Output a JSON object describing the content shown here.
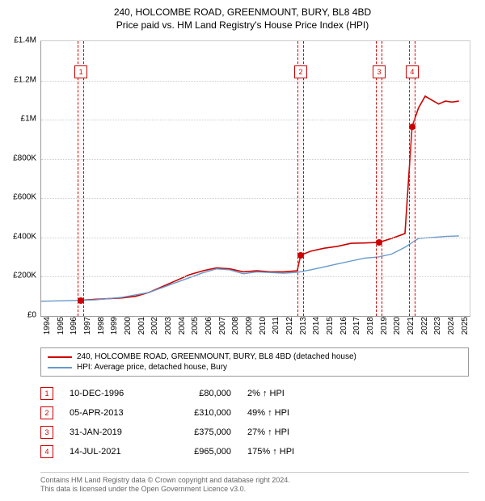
{
  "title_line1": "240, HOLCOMBE ROAD, GREENMOUNT, BURY, BL8 4BD",
  "title_line2": "Price paid vs. HM Land Registry's House Price Index (HPI)",
  "chart": {
    "type": "line",
    "background_color": "#ffffff",
    "grid_color": "#cccccc",
    "axis_color": "#999999",
    "x": {
      "min": 1994,
      "max": 2025.8,
      "ticks": [
        1994,
        1995,
        1996,
        1997,
        1998,
        1999,
        2000,
        2001,
        2002,
        2003,
        2004,
        2005,
        2006,
        2007,
        2008,
        2009,
        2010,
        2011,
        2012,
        2013,
        2014,
        2015,
        2016,
        2017,
        2018,
        2019,
        2020,
        2021,
        2022,
        2023,
        2024,
        2025
      ]
    },
    "y": {
      "min": 0,
      "max": 1400000,
      "ticks": [
        0,
        200000,
        400000,
        600000,
        800000,
        1000000,
        1200000,
        1400000
      ],
      "tick_labels": [
        "£0",
        "£200K",
        "£400K",
        "£600K",
        "£800K",
        "£1M",
        "£1.2M",
        "£1.4M"
      ]
    },
    "series": [
      {
        "name": "price_paid",
        "color": "#cc0000",
        "width": 1.6,
        "points": [
          [
            1996.95,
            80000
          ],
          [
            1998,
            85000
          ],
          [
            1999,
            88000
          ],
          [
            2000,
            92000
          ],
          [
            2001,
            100000
          ],
          [
            2002,
            120000
          ],
          [
            2003,
            150000
          ],
          [
            2004,
            180000
          ],
          [
            2005,
            210000
          ],
          [
            2006,
            230000
          ],
          [
            2007,
            245000
          ],
          [
            2008,
            240000
          ],
          [
            2009,
            225000
          ],
          [
            2010,
            230000
          ],
          [
            2011,
            225000
          ],
          [
            2012,
            225000
          ],
          [
            2013,
            230000
          ],
          [
            2013.26,
            310000
          ],
          [
            2014,
            330000
          ],
          [
            2015,
            345000
          ],
          [
            2016,
            355000
          ],
          [
            2017,
            370000
          ],
          [
            2018,
            372000
          ],
          [
            2019.08,
            375000
          ],
          [
            2020,
            395000
          ],
          [
            2021,
            420000
          ],
          [
            2021.53,
            965000
          ],
          [
            2022,
            1060000
          ],
          [
            2022.5,
            1120000
          ],
          [
            2023,
            1100000
          ],
          [
            2023.5,
            1080000
          ],
          [
            2024,
            1095000
          ],
          [
            2024.5,
            1090000
          ],
          [
            2025,
            1095000
          ]
        ]
      },
      {
        "name": "hpi",
        "color": "#6699cc",
        "width": 1.4,
        "points": [
          [
            1994,
            75000
          ],
          [
            1996,
            78000
          ],
          [
            1998,
            82000
          ],
          [
            2000,
            95000
          ],
          [
            2002,
            120000
          ],
          [
            2004,
            170000
          ],
          [
            2006,
            220000
          ],
          [
            2007,
            240000
          ],
          [
            2008,
            235000
          ],
          [
            2009,
            215000
          ],
          [
            2010,
            225000
          ],
          [
            2012,
            218000
          ],
          [
            2013,
            222000
          ],
          [
            2014,
            235000
          ],
          [
            2015,
            250000
          ],
          [
            2016,
            265000
          ],
          [
            2017,
            280000
          ],
          [
            2018,
            295000
          ],
          [
            2019,
            300000
          ],
          [
            2020,
            315000
          ],
          [
            2021,
            350000
          ],
          [
            2022,
            395000
          ],
          [
            2023,
            400000
          ],
          [
            2024,
            405000
          ],
          [
            2025,
            408000
          ]
        ]
      }
    ],
    "markers": [
      {
        "x": 1996.95,
        "y": 80000
      },
      {
        "x": 2013.26,
        "y": 310000
      },
      {
        "x": 2019.08,
        "y": 375000
      },
      {
        "x": 2021.53,
        "y": 965000
      }
    ],
    "bands": [
      {
        "num": "1",
        "x": 1996.95
      },
      {
        "num": "2",
        "x": 2013.26
      },
      {
        "num": "3",
        "x": 2019.08
      },
      {
        "num": "4",
        "x": 2021.53
      }
    ],
    "band_color": "#cc0000",
    "marker_color": "#cc0000"
  },
  "legend": {
    "items": [
      {
        "color": "#cc0000",
        "label": "240, HOLCOMBE ROAD, GREENMOUNT, BURY, BL8 4BD (detached house)"
      },
      {
        "color": "#6699cc",
        "label": "HPI: Average price, detached house, Bury"
      }
    ]
  },
  "events": [
    {
      "num": "1",
      "date": "10-DEC-1996",
      "price": "£80,000",
      "pct": "2% ↑ HPI"
    },
    {
      "num": "2",
      "date": "05-APR-2013",
      "price": "£310,000",
      "pct": "49% ↑ HPI"
    },
    {
      "num": "3",
      "date": "31-JAN-2019",
      "price": "£375,000",
      "pct": "27% ↑ HPI"
    },
    {
      "num": "4",
      "date": "14-JUL-2021",
      "price": "£965,000",
      "pct": "175% ↑ HPI"
    }
  ],
  "footer_line1": "Contains HM Land Registry data © Crown copyright and database right 2024.",
  "footer_line2": "This data is licensed under the Open Government Licence v3.0."
}
